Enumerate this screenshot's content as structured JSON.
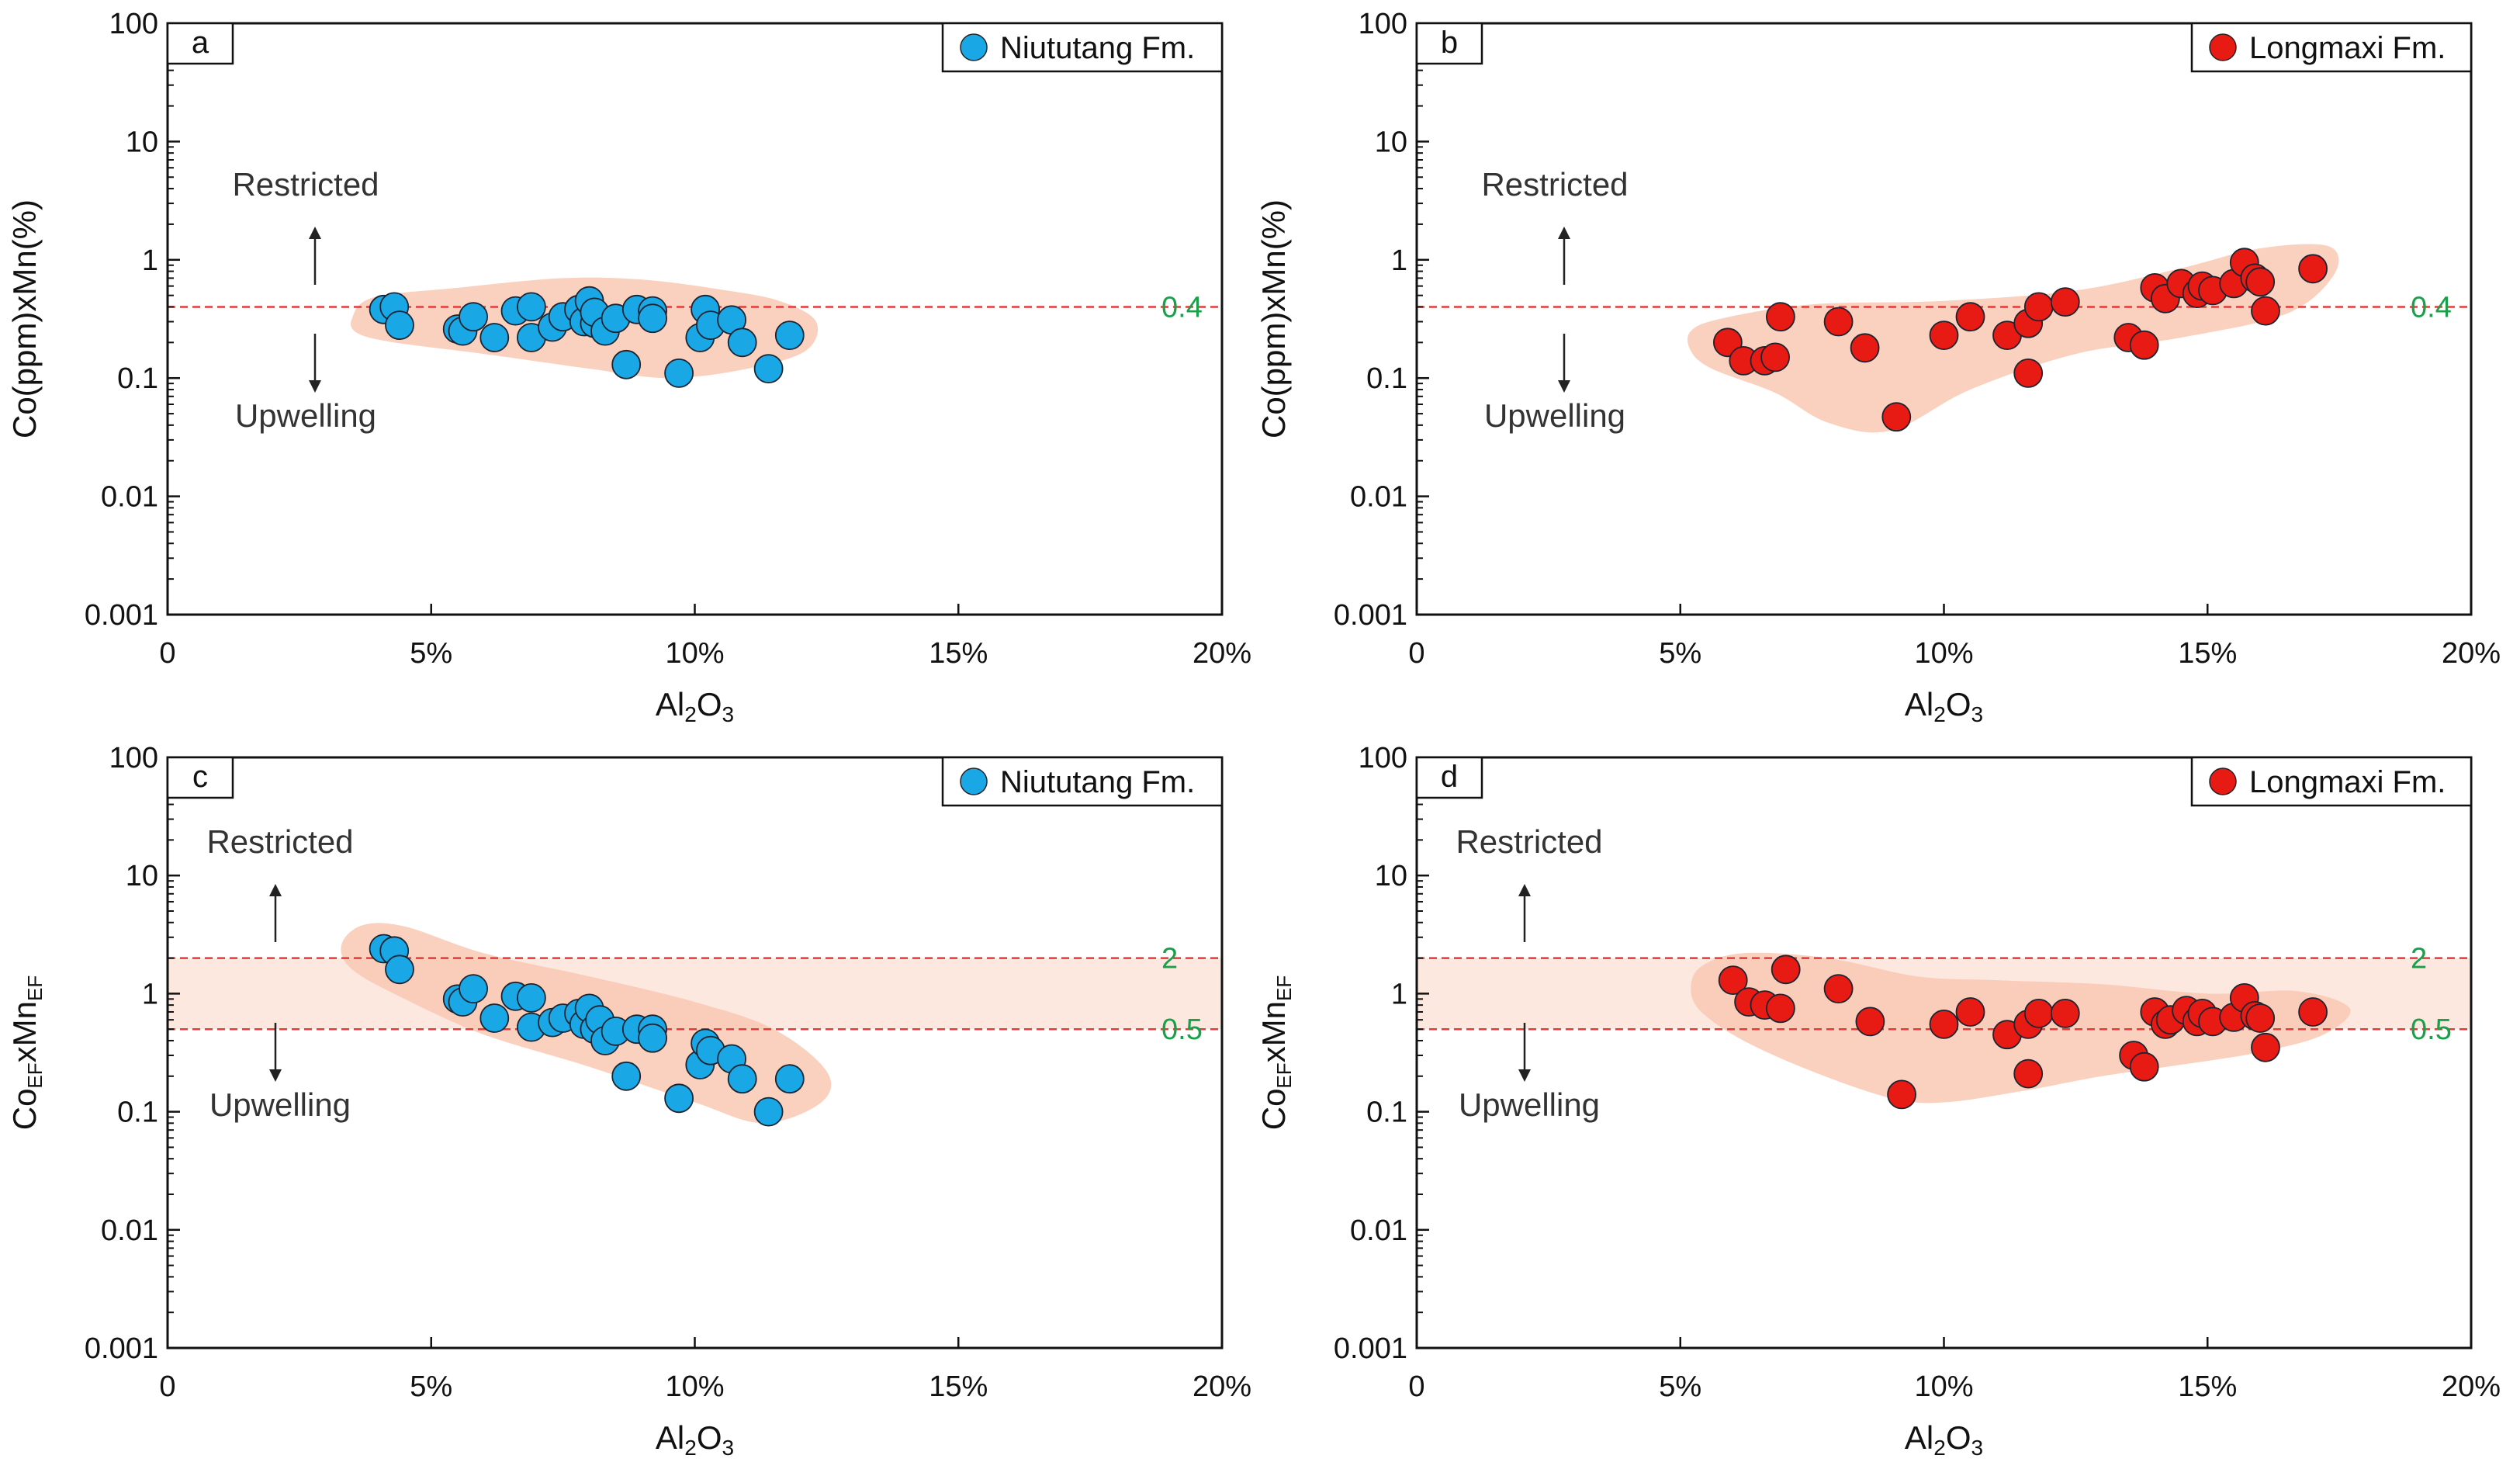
{
  "chart_data": [
    {
      "type": "scatter",
      "panel_label": "a",
      "legend": "Niututang Fm.",
      "point_color": "#1aa7e6",
      "ylabel": "Co(ppm)xMn(%)",
      "xlabel": "Al2O3",
      "x_ticks": [
        "0",
        "5%",
        "10%",
        "15%",
        "20%"
      ],
      "y_ticks": [
        "0.001",
        "0.01",
        "0.1",
        "1",
        "10",
        "100"
      ],
      "xlim": [
        0,
        20
      ],
      "ylim": [
        0.001,
        100
      ],
      "thresholds": [
        {
          "value": 0.4,
          "label": "0.4"
        }
      ],
      "annotation_up": "Restricted",
      "annotation_down": "Upwelling",
      "envelope": [
        [
          3.5,
          0.32
        ],
        [
          3.9,
          0.48
        ],
        [
          5.5,
          0.58
        ],
        [
          7.5,
          0.7
        ],
        [
          9,
          0.68
        ],
        [
          10.5,
          0.56
        ],
        [
          11.6,
          0.45
        ],
        [
          12.3,
          0.3
        ],
        [
          12.1,
          0.17
        ],
        [
          11,
          0.12
        ],
        [
          9.5,
          0.1
        ],
        [
          8,
          0.12
        ],
        [
          6,
          0.16
        ],
        [
          4.3,
          0.2
        ],
        [
          3.6,
          0.24
        ]
      ],
      "points": [
        [
          4.1,
          0.38
        ],
        [
          4.3,
          0.4
        ],
        [
          4.4,
          0.28
        ],
        [
          5.5,
          0.26
        ],
        [
          5.6,
          0.25
        ],
        [
          5.8,
          0.33
        ],
        [
          6.2,
          0.22
        ],
        [
          6.6,
          0.37
        ],
        [
          6.9,
          0.4
        ],
        [
          6.9,
          0.22
        ],
        [
          7.3,
          0.27
        ],
        [
          7.5,
          0.33
        ],
        [
          7.8,
          0.38
        ],
        [
          7.9,
          0.3
        ],
        [
          8.0,
          0.45
        ],
        [
          8.1,
          0.29
        ],
        [
          8.1,
          0.36
        ],
        [
          8.3,
          0.25
        ],
        [
          8.5,
          0.32
        ],
        [
          8.7,
          0.13
        ],
        [
          8.9,
          0.38
        ],
        [
          9.2,
          0.37
        ],
        [
          9.2,
          0.32
        ],
        [
          9.7,
          0.11
        ],
        [
          10.1,
          0.22
        ],
        [
          10.2,
          0.38
        ],
        [
          10.3,
          0.28
        ],
        [
          10.7,
          0.31
        ],
        [
          10.9,
          0.2
        ],
        [
          11.4,
          0.12
        ],
        [
          11.8,
          0.23
        ]
      ]
    },
    {
      "type": "scatter",
      "panel_label": "b",
      "legend": "Longmaxi Fm.",
      "point_color": "#e81a14",
      "ylabel": "Co(ppm)xMn(%)",
      "xlabel": "Al2O3",
      "x_ticks": [
        "0",
        "5%",
        "10%",
        "15%",
        "20%"
      ],
      "y_ticks": [
        "0.001",
        "0.01",
        "0.1",
        "1",
        "10",
        "100"
      ],
      "xlim": [
        0,
        20
      ],
      "ylim": [
        0.001,
        100
      ],
      "thresholds": [
        {
          "value": 0.4,
          "label": "0.4"
        }
      ],
      "annotation_up": "Restricted",
      "annotation_down": "Upwelling",
      "envelope": [
        [
          5.2,
          0.25
        ],
        [
          5.8,
          0.32
        ],
        [
          7.5,
          0.42
        ],
        [
          10,
          0.45
        ],
        [
          12.5,
          0.55
        ],
        [
          14.5,
          0.85
        ],
        [
          16,
          1.25
        ],
        [
          17.3,
          1.3
        ],
        [
          17.4,
          0.75
        ],
        [
          16.5,
          0.35
        ],
        [
          14.5,
          0.22
        ],
        [
          12.5,
          0.16
        ],
        [
          10.5,
          0.08
        ],
        [
          9,
          0.036
        ],
        [
          7.8,
          0.042
        ],
        [
          6.8,
          0.075
        ],
        [
          5.6,
          0.12
        ],
        [
          5.2,
          0.17
        ]
      ],
      "points": [
        [
          5.9,
          0.2
        ],
        [
          6.2,
          0.14
        ],
        [
          6.6,
          0.14
        ],
        [
          6.8,
          0.15
        ],
        [
          6.9,
          0.33
        ],
        [
          8.0,
          0.3
        ],
        [
          8.5,
          0.18
        ],
        [
          9.1,
          0.047
        ],
        [
          10.0,
          0.23
        ],
        [
          10.5,
          0.33
        ],
        [
          11.2,
          0.23
        ],
        [
          11.6,
          0.29
        ],
        [
          11.6,
          0.11
        ],
        [
          11.8,
          0.4
        ],
        [
          12.3,
          0.44
        ],
        [
          13.5,
          0.22
        ],
        [
          13.8,
          0.19
        ],
        [
          14.0,
          0.58
        ],
        [
          14.2,
          0.47
        ],
        [
          14.5,
          0.63
        ],
        [
          14.8,
          0.52
        ],
        [
          14.9,
          0.6
        ],
        [
          15.1,
          0.55
        ],
        [
          15.5,
          0.63
        ],
        [
          15.7,
          0.95
        ],
        [
          15.9,
          0.7
        ],
        [
          16.0,
          0.65
        ],
        [
          16.1,
          0.37
        ],
        [
          17.0,
          0.84
        ]
      ]
    },
    {
      "type": "scatter",
      "panel_label": "c",
      "legend": "Niututang Fm.",
      "point_color": "#1aa7e6",
      "ylabel_main": "Co",
      "ylabel_sub1": "EF",
      "ylabel_mid": "xMn",
      "ylabel_sub2": "EF",
      "xlabel": "Al2O3",
      "x_ticks": [
        "0",
        "5%",
        "10%",
        "15%",
        "20%"
      ],
      "y_ticks": [
        "0.001",
        "0.01",
        "0.1",
        "1",
        "10",
        "100"
      ],
      "xlim": [
        0,
        20
      ],
      "ylim": [
        0.001,
        100
      ],
      "thresholds": [
        {
          "value": 2,
          "label": "2"
        },
        {
          "value": 0.5,
          "label": "0.5"
        }
      ],
      "annotation_up": "Restricted",
      "annotation_down": "Upwelling",
      "envelope": [
        [
          3.3,
          2.6
        ],
        [
          3.7,
          3.8
        ],
        [
          4.5,
          3.7
        ],
        [
          6,
          2.2
        ],
        [
          8,
          1.4
        ],
        [
          10,
          0.85
        ],
        [
          11.5,
          0.5
        ],
        [
          12.5,
          0.22
        ],
        [
          12.4,
          0.12
        ],
        [
          11.3,
          0.08
        ],
        [
          10,
          0.12
        ],
        [
          8,
          0.24
        ],
        [
          6,
          0.45
        ],
        [
          4.5,
          0.9
        ],
        [
          3.5,
          1.6
        ]
      ],
      "points": [
        [
          4.1,
          2.4
        ],
        [
          4.3,
          2.3
        ],
        [
          4.4,
          1.6
        ],
        [
          5.5,
          0.9
        ],
        [
          5.6,
          0.85
        ],
        [
          5.8,
          1.1
        ],
        [
          6.2,
          0.62
        ],
        [
          6.6,
          0.95
        ],
        [
          6.9,
          0.92
        ],
        [
          6.9,
          0.52
        ],
        [
          7.3,
          0.57
        ],
        [
          7.5,
          0.62
        ],
        [
          7.8,
          0.68
        ],
        [
          7.9,
          0.55
        ],
        [
          8.0,
          0.75
        ],
        [
          8.1,
          0.5
        ],
        [
          8.2,
          0.6
        ],
        [
          8.3,
          0.4
        ],
        [
          8.5,
          0.48
        ],
        [
          8.7,
          0.2
        ],
        [
          8.9,
          0.5
        ],
        [
          9.2,
          0.5
        ],
        [
          9.2,
          0.42
        ],
        [
          9.7,
          0.13
        ],
        [
          10.1,
          0.25
        ],
        [
          10.2,
          0.38
        ],
        [
          10.3,
          0.33
        ],
        [
          10.7,
          0.28
        ],
        [
          10.9,
          0.19
        ],
        [
          11.4,
          0.1
        ],
        [
          11.8,
          0.19
        ]
      ]
    },
    {
      "type": "scatter",
      "panel_label": "d",
      "legend": "Longmaxi Fm.",
      "point_color": "#e81a14",
      "ylabel_main": "Co",
      "ylabel_sub1": "EF",
      "ylabel_mid": "xMn",
      "ylabel_sub2": "EF",
      "xlabel": "Al2O3",
      "x_ticks": [
        "0",
        "5%",
        "10%",
        "15%",
        "20%"
      ],
      "y_ticks": [
        "0.001",
        "0.01",
        "0.1",
        "1",
        "10",
        "100"
      ],
      "xlim": [
        0,
        20
      ],
      "ylim": [
        0.001,
        100
      ],
      "thresholds": [
        {
          "value": 2,
          "label": "2"
        },
        {
          "value": 0.5,
          "label": "0.5"
        }
      ],
      "annotation_up": "Restricted",
      "annotation_down": "Upwelling",
      "envelope": [
        [
          5.2,
          1.1
        ],
        [
          5.4,
          1.7
        ],
        [
          6.2,
          2.2
        ],
        [
          7.8,
          2.0
        ],
        [
          9.5,
          1.4
        ],
        [
          11,
          1.3
        ],
        [
          13,
          1.2
        ],
        [
          15,
          1.0
        ],
        [
          16.7,
          1.05
        ],
        [
          17.7,
          0.75
        ],
        [
          17.2,
          0.45
        ],
        [
          16,
          0.32
        ],
        [
          14.5,
          0.25
        ],
        [
          13,
          0.2
        ],
        [
          11.5,
          0.15
        ],
        [
          10,
          0.12
        ],
        [
          9,
          0.13
        ],
        [
          7.5,
          0.22
        ],
        [
          6.2,
          0.4
        ],
        [
          5.4,
          0.7
        ]
      ],
      "points": [
        [
          6.0,
          1.3
        ],
        [
          6.3,
          0.85
        ],
        [
          6.6,
          0.8
        ],
        [
          6.9,
          0.75
        ],
        [
          7.0,
          1.6
        ],
        [
          8.0,
          1.1
        ],
        [
          8.6,
          0.58
        ],
        [
          9.2,
          0.14
        ],
        [
          10.0,
          0.55
        ],
        [
          10.5,
          0.7
        ],
        [
          11.2,
          0.45
        ],
        [
          11.6,
          0.55
        ],
        [
          11.6,
          0.21
        ],
        [
          11.8,
          0.68
        ],
        [
          12.3,
          0.68
        ],
        [
          13.6,
          0.3
        ],
        [
          13.8,
          0.24
        ],
        [
          14.0,
          0.7
        ],
        [
          14.2,
          0.55
        ],
        [
          14.3,
          0.6
        ],
        [
          14.6,
          0.72
        ],
        [
          14.8,
          0.58
        ],
        [
          14.9,
          0.68
        ],
        [
          15.1,
          0.58
        ],
        [
          15.5,
          0.63
        ],
        [
          15.7,
          0.92
        ],
        [
          15.9,
          0.65
        ],
        [
          16.0,
          0.62
        ],
        [
          16.1,
          0.35
        ],
        [
          17.0,
          0.7
        ]
      ]
    }
  ]
}
